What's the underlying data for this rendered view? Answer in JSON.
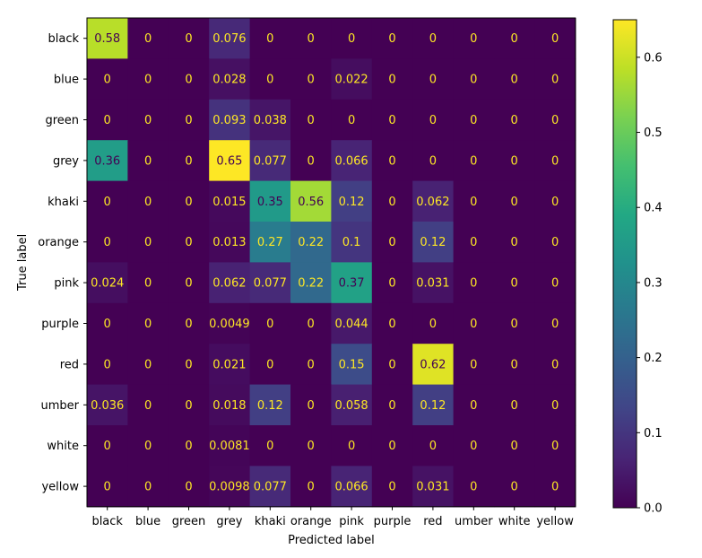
{
  "chart_data": {
    "type": "heatmap",
    "title": "",
    "xlabel": "Predicted label",
    "ylabel": "True label",
    "x_categories": [
      "black",
      "blue",
      "green",
      "grey",
      "khaki",
      "orange",
      "pink",
      "purple",
      "red",
      "umber",
      "white",
      "yellow"
    ],
    "y_categories": [
      "black",
      "blue",
      "green",
      "grey",
      "khaki",
      "orange",
      "pink",
      "purple",
      "red",
      "umber",
      "white",
      "yellow"
    ],
    "values": [
      [
        0.58,
        0,
        0,
        0.076,
        0,
        0,
        0,
        0,
        0,
        0,
        0,
        0
      ],
      [
        0,
        0,
        0,
        0.028,
        0,
        0,
        0.022,
        0,
        0,
        0,
        0,
        0
      ],
      [
        0,
        0,
        0,
        0.093,
        0.038,
        0,
        0,
        0,
        0,
        0,
        0,
        0
      ],
      [
        0.36,
        0,
        0,
        0.65,
        0.077,
        0,
        0.066,
        0,
        0,
        0,
        0,
        0
      ],
      [
        0,
        0,
        0,
        0.015,
        0.35,
        0.56,
        0.12,
        0,
        0.062,
        0,
        0,
        0
      ],
      [
        0,
        0,
        0,
        0.013,
        0.27,
        0.22,
        0.1,
        0,
        0.12,
        0,
        0,
        0
      ],
      [
        0.024,
        0,
        0,
        0.062,
        0.077,
        0.22,
        0.37,
        0,
        0.031,
        0,
        0,
        0
      ],
      [
        0,
        0,
        0,
        0.0049,
        0,
        0,
        0.044,
        0,
        0,
        0,
        0,
        0
      ],
      [
        0,
        0,
        0,
        0.021,
        0,
        0,
        0.15,
        0,
        0.62,
        0,
        0,
        0
      ],
      [
        0.036,
        0,
        0,
        0.018,
        0.12,
        0,
        0.058,
        0,
        0.12,
        0,
        0,
        0
      ],
      [
        0,
        0,
        0,
        0.0081,
        0,
        0,
        0,
        0,
        0,
        0,
        0,
        0
      ],
      [
        0,
        0,
        0,
        0.0098,
        0.077,
        0,
        0.066,
        0,
        0.031,
        0,
        0,
        0
      ]
    ],
    "colormap": "viridis",
    "colorbar": {
      "range": [
        0,
        0.65
      ],
      "ticks": [
        0.0,
        0.1,
        0.2,
        0.3,
        0.4,
        0.5,
        0.6
      ],
      "tick_labels": [
        "0.0",
        "0.1",
        "0.2",
        "0.3",
        "0.4",
        "0.5",
        "0.6"
      ]
    },
    "text_colors": {
      "light": "#fde725",
      "dark": "#440154"
    }
  }
}
